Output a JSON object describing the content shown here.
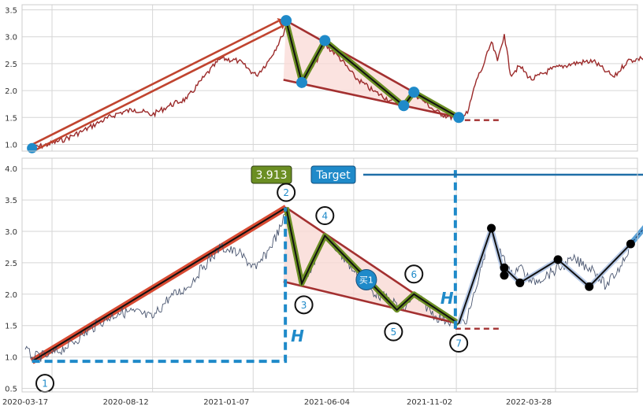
{
  "chart_data": [
    {
      "type": "line",
      "panel": "top",
      "ylim": [
        0.85,
        3.55
      ],
      "yticks": [
        "1.0",
        "1.5",
        "2.0",
        "2.5",
        "3.0",
        "3.5"
      ],
      "grid": true,
      "series": [
        {
          "role": "price",
          "color": "#9b2a2a",
          "points": [
            [
              "2020-03-27",
              0.93
            ],
            [
              "2020-04-20",
              1.0
            ],
            [
              "2020-05-15",
              1.1
            ],
            [
              "2020-06-10",
              1.25
            ],
            [
              "2020-07-05",
              1.42
            ],
            [
              "2020-08-01",
              1.58
            ],
            [
              "2020-08-25",
              1.65
            ],
            [
              "2020-09-20",
              1.55
            ],
            [
              "2020-10-15",
              1.72
            ],
            [
              "2020-11-10",
              1.85
            ],
            [
              "2020-12-05",
              2.25
            ],
            [
              "2020-12-30",
              2.6
            ],
            [
              "2021-01-25",
              2.55
            ],
            [
              "2021-02-20",
              2.28
            ],
            [
              "2021-03-10",
              2.55
            ],
            [
              "2021-03-30",
              3.0
            ],
            [
              "2021-04-05",
              3.22
            ],
            [
              "2021-04-18",
              2.65
            ],
            [
              "2021-04-28",
              2.15
            ],
            [
              "2021-05-15",
              2.45
            ],
            [
              "2021-06-01",
              2.85
            ],
            [
              "2021-06-20",
              2.65
            ],
            [
              "2021-07-15",
              2.25
            ],
            [
              "2021-08-10",
              2.0
            ],
            [
              "2021-09-05",
              1.82
            ],
            [
              "2021-09-25",
              1.72
            ],
            [
              "2021-10-10",
              1.95
            ],
            [
              "2021-10-25",
              1.8
            ],
            [
              "2021-11-10",
              1.62
            ],
            [
              "2021-11-28",
              1.52
            ],
            [
              "2021-12-15",
              1.48
            ],
            [
              "2021-12-28",
              1.58
            ],
            [
              "2022-01-10",
              2.2
            ],
            [
              "2022-01-20",
              2.45
            ],
            [
              "2022-02-01",
              2.9
            ],
            [
              "2022-02-10",
              2.55
            ],
            [
              "2022-02-20",
              3.05
            ],
            [
              "2022-03-01",
              2.3
            ],
            [
              "2022-03-15",
              2.45
            ],
            [
              "2022-04-01",
              2.2
            ],
            [
              "2022-05-01",
              2.4
            ],
            [
              "2022-06-01",
              2.5
            ],
            [
              "2022-07-01",
              2.55
            ],
            [
              "2022-07-20",
              2.35
            ],
            [
              "2022-08-01",
              2.25
            ],
            [
              "2022-08-20",
              2.55
            ],
            [
              "2022-09-10",
              2.6
            ],
            [
              "2022-10-10",
              2.75
            ],
            [
              "2022-10-25",
              2.8
            ]
          ]
        },
        {
          "role": "zigzag-path",
          "points": [
            [
              "2021-04-05",
              3.3
            ],
            [
              "2021-04-28",
              2.15
            ],
            [
              "2021-06-01",
              2.93
            ],
            [
              "2021-09-25",
              1.72
            ],
            [
              "2021-10-10",
              1.97
            ],
            [
              "2021-12-15",
              1.5
            ]
          ]
        },
        {
          "role": "pole-arrow",
          "points": [
            [
              "2020-03-27",
              0.93
            ],
            [
              "2021-04-05",
              3.3
            ]
          ]
        }
      ],
      "upper_trendline": [
        [
          "2021-04-05",
          3.3
        ],
        [
          "2021-12-15",
          1.5
        ]
      ],
      "lower_trendline": [
        [
          "2021-04-01",
          2.2
        ],
        [
          "2021-12-15",
          1.5
        ]
      ],
      "breakout_level": {
        "value": 1.45,
        "from": "2021-12-10",
        "to": "2022-02-15"
      }
    },
    {
      "type": "line",
      "panel": "bottom",
      "ylim": [
        0.45,
        4.2
      ],
      "yticks": [
        "0.5",
        "1.0",
        "1.5",
        "2.0",
        "2.5",
        "3.0",
        "3.5",
        "4.0"
      ],
      "xlabels": [
        "2020-03-17",
        "2020-08-12",
        "2021-01-07",
        "2021-06-04",
        "2021-11-02",
        "2022-03-28"
      ],
      "grid": true,
      "series": [
        {
          "role": "price",
          "color": "#4a5670",
          "points": [
            [
              "2020-03-17",
              1.12
            ],
            [
              "2020-03-27",
              1.0
            ],
            [
              "2020-04-20",
              1.02
            ],
            [
              "2020-05-15",
              1.15
            ],
            [
              "2020-06-10",
              1.35
            ],
            [
              "2020-07-05",
              1.55
            ],
            [
              "2020-08-01",
              1.7
            ],
            [
              "2020-08-25",
              1.72
            ],
            [
              "2020-09-20",
              1.62
            ],
            [
              "2020-10-15",
              1.95
            ],
            [
              "2020-11-10",
              2.1
            ],
            [
              "2020-12-05",
              2.45
            ],
            [
              "2020-12-30",
              2.75
            ],
            [
              "2021-01-25",
              2.65
            ],
            [
              "2021-02-20",
              2.4
            ],
            [
              "2021-03-10",
              2.7
            ],
            [
              "2021-03-30",
              3.1
            ],
            [
              "2021-04-05",
              3.38
            ],
            [
              "2021-04-18",
              2.7
            ],
            [
              "2021-04-28",
              2.17
            ],
            [
              "2021-05-15",
              2.5
            ],
            [
              "2021-06-01",
              2.93
            ],
            [
              "2021-06-20",
              2.7
            ],
            [
              "2021-07-15",
              2.35
            ],
            [
              "2021-08-10",
              2.05
            ],
            [
              "2021-09-05",
              1.9
            ],
            [
              "2021-09-25",
              1.75
            ],
            [
              "2021-10-10",
              2.0
            ],
            [
              "2021-10-25",
              1.85
            ],
            [
              "2021-11-10",
              1.65
            ],
            [
              "2021-11-28",
              1.58
            ],
            [
              "2021-12-15",
              1.53
            ],
            [
              "2021-12-28",
              1.62
            ],
            [
              "2022-01-10",
              2.1
            ],
            [
              "2022-01-20",
              2.55
            ],
            [
              "2022-02-01",
              3.05
            ],
            [
              "2022-02-10",
              2.7
            ],
            [
              "2022-02-20",
              2.6
            ],
            [
              "2022-03-01",
              2.3
            ],
            [
              "2022-03-15",
              2.45
            ],
            [
              "2022-04-01",
              2.18
            ],
            [
              "2022-05-01",
              2.35
            ],
            [
              "2022-06-01",
              2.55
            ],
            [
              "2022-07-01",
              2.4
            ],
            [
              "2022-07-20",
              2.12
            ],
            [
              "2022-08-10",
              2.45
            ],
            [
              "2022-08-25",
              2.8
            ]
          ]
        },
        {
          "role": "zigzag-path",
          "points": [
            [
              "2021-04-05",
              3.38
            ],
            [
              "2021-04-28",
              2.17
            ],
            [
              "2021-06-01",
              2.93
            ],
            [
              "2021-09-15",
              1.75
            ],
            [
              "2021-10-10",
              2.0
            ],
            [
              "2021-12-15",
              1.53
            ]
          ]
        },
        {
          "role": "pole",
          "points": [
            [
              "2020-03-27",
              0.93
            ],
            [
              "2021-04-05",
              3.38
            ]
          ]
        },
        {
          "role": "projection",
          "points": [
            [
              "2021-12-15",
              1.53
            ],
            [
              "2022-02-01",
              3.05
            ],
            [
              "2022-02-20",
              2.3
            ],
            [
              "2022-02-20",
              2.42
            ],
            [
              "2022-03-15",
              2.18
            ],
            [
              "2022-05-10",
              2.55
            ],
            [
              "2022-06-25",
              2.12
            ],
            [
              "2022-08-25",
              2.8
            ],
            [
              "2022-11-20",
              3.913
            ]
          ]
        }
      ],
      "upper_trendline": [
        [
          "2021-04-05",
          3.38
        ],
        [
          "2021-12-15",
          1.53
        ]
      ],
      "lower_trendline": [
        [
          "2021-04-01",
          2.2
        ],
        [
          "2021-12-15",
          1.53
        ]
      ],
      "breakout_level": {
        "value": 1.45,
        "from": "2021-12-10",
        "to": "2022-02-15"
      },
      "pole_measure": {
        "base_value": 0.93,
        "top_value": 3.38,
        "from": "2020-03-27",
        "at": "2021-04-05",
        "label": "H"
      },
      "target_measure": {
        "at": "2021-12-10",
        "from_value": 1.45,
        "to_value": 3.9,
        "label": "H"
      },
      "target": {
        "value": 3.913,
        "date": "2022-11-20",
        "label": "Target",
        "value_label": "3.913"
      },
      "buy_marker": {
        "date": "2021-08-01",
        "value": 2.23,
        "label": "买1"
      },
      "points": [
        {
          "label": "1",
          "date": "2020-04-15",
          "value": 0.58
        },
        {
          "label": "2",
          "date": "2021-04-05",
          "value": 3.62
        },
        {
          "label": "3",
          "date": "2021-05-01",
          "value": 1.83
        },
        {
          "label": "4",
          "date": "2021-06-01",
          "value": 3.25
        },
        {
          "label": "5",
          "date": "2021-09-10",
          "value": 1.4
        },
        {
          "label": "6",
          "date": "2021-10-10",
          "value": 2.32
        },
        {
          "label": "7",
          "date": "2021-12-15",
          "value": 1.22
        }
      ]
    }
  ],
  "colors": {
    "price_top": "#9b2a2a",
    "price_bottom": "#4a5670",
    "pattern_edge": "#a33030",
    "pattern_fill": "#f9d9d5",
    "zigzag_outer": "#6b8e23",
    "marker_blue": "#1f8ac9",
    "target_box": "#1f8ac9",
    "value_box": "#6b8e23",
    "grid": "#d6d6d6"
  }
}
